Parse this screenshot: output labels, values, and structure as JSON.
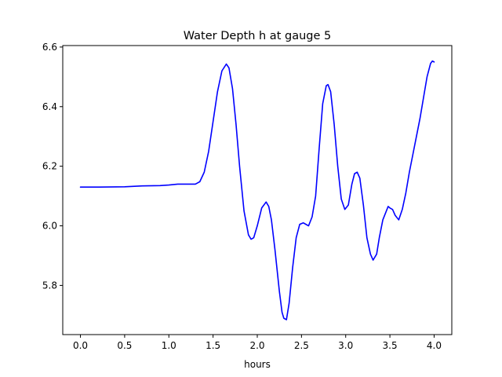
{
  "chart_data": {
    "type": "line",
    "title": "Water Depth h at gauge 5",
    "xlabel": "hours",
    "ylabel": "",
    "xlim": [
      -0.2,
      4.2
    ],
    "ylim": [
      5.635,
      6.605
    ],
    "xticks": [
      0.0,
      0.5,
      1.0,
      1.5,
      2.0,
      2.5,
      3.0,
      3.5,
      4.0
    ],
    "xtick_labels": [
      "0.0",
      "0.5",
      "1.0",
      "1.5",
      "2.0",
      "2.5",
      "3.0",
      "3.5",
      "4.0"
    ],
    "yticks": [
      5.8,
      6.0,
      6.2,
      6.4,
      6.6
    ],
    "ytick_labels": [
      "5.8",
      "6.0",
      "6.2",
      "6.4",
      "6.6"
    ],
    "grid": false,
    "legend": "none",
    "series": [
      {
        "color": "#0000ff",
        "x": [
          0.0,
          0.2,
          0.5,
          0.7,
          0.9,
          1.0,
          1.1,
          1.2,
          1.3,
          1.35,
          1.4,
          1.45,
          1.5,
          1.55,
          1.6,
          1.65,
          1.68,
          1.72,
          1.76,
          1.8,
          1.85,
          1.9,
          1.93,
          1.96,
          2.0,
          2.05,
          2.1,
          2.13,
          2.16,
          2.2,
          2.25,
          2.28,
          2.3,
          2.33,
          2.36,
          2.4,
          2.44,
          2.48,
          2.52,
          2.55,
          2.58,
          2.62,
          2.66,
          2.7,
          2.74,
          2.78,
          2.8,
          2.83,
          2.87,
          2.91,
          2.95,
          2.99,
          3.03,
          3.07,
          3.1,
          3.13,
          3.16,
          3.2,
          3.24,
          3.28,
          3.31,
          3.35,
          3.38,
          3.42,
          3.46,
          3.48,
          3.5,
          3.53,
          3.56,
          3.6,
          3.64,
          3.68,
          3.72,
          3.76,
          3.8,
          3.84,
          3.88,
          3.92,
          3.96,
          3.98,
          4.0
        ],
        "y": [
          6.13,
          6.13,
          6.131,
          6.134,
          6.135,
          6.137,
          6.14,
          6.14,
          6.14,
          6.148,
          6.18,
          6.25,
          6.35,
          6.45,
          6.52,
          6.543,
          6.53,
          6.46,
          6.34,
          6.2,
          6.05,
          5.97,
          5.955,
          5.96,
          6.0,
          6.06,
          6.08,
          6.065,
          6.02,
          5.92,
          5.78,
          5.71,
          5.69,
          5.685,
          5.74,
          5.86,
          5.96,
          6.005,
          6.01,
          6.005,
          6.0,
          6.03,
          6.1,
          6.26,
          6.41,
          6.47,
          6.474,
          6.45,
          6.34,
          6.2,
          6.09,
          6.055,
          6.07,
          6.14,
          6.175,
          6.18,
          6.16,
          6.07,
          5.96,
          5.905,
          5.885,
          5.905,
          5.96,
          6.02,
          6.05,
          6.065,
          6.06,
          6.055,
          6.035,
          6.02,
          6.055,
          6.11,
          6.18,
          6.24,
          6.3,
          6.36,
          6.43,
          6.5,
          6.545,
          6.553,
          6.55
        ]
      }
    ]
  }
}
